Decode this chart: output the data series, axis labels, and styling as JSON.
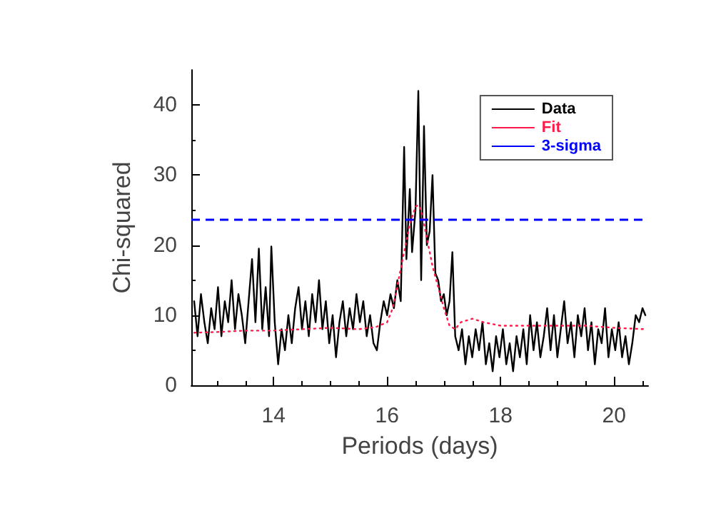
{
  "chart_data": {
    "type": "line",
    "xlabel": "Periods (days)",
    "ylabel": "Chi-squared",
    "xlim": [
      12.55,
      20.6
    ],
    "xticks": [
      14,
      16,
      18,
      20
    ],
    "ylim": [
      0,
      45
    ],
    "yticks": [
      0,
      10,
      20,
      30,
      40
    ],
    "grid": false,
    "legend": "top right",
    "marker": "none",
    "series": [
      {
        "name": "Data",
        "color": "#000000",
        "line_style": "solid",
        "x": [
          12.6,
          12.66,
          12.72,
          12.78,
          12.84,
          12.9,
          12.96,
          13.02,
          13.08,
          13.14,
          13.2,
          13.26,
          13.32,
          13.38,
          13.44,
          13.5,
          13.56,
          13.62,
          13.68,
          13.74,
          13.8,
          13.86,
          13.92,
          13.96,
          14.02,
          14.08,
          14.14,
          14.2,
          14.26,
          14.32,
          14.38,
          14.44,
          14.5,
          14.56,
          14.62,
          14.68,
          14.74,
          14.8,
          14.86,
          14.92,
          14.98,
          15.04,
          15.1,
          15.16,
          15.22,
          15.28,
          15.34,
          15.4,
          15.46,
          15.52,
          15.58,
          15.64,
          15.7,
          15.76,
          15.82,
          15.88,
          15.94,
          16.0,
          16.06,
          16.12,
          16.18,
          16.24,
          16.3,
          16.34,
          16.4,
          16.44,
          16.5,
          16.55,
          16.6,
          16.65,
          16.7,
          16.75,
          16.8,
          16.85,
          16.9,
          16.95,
          17.0,
          17.05,
          17.1,
          17.15,
          17.2,
          17.26,
          17.32,
          17.38,
          17.44,
          17.5,
          17.56,
          17.62,
          17.68,
          17.74,
          17.8,
          17.86,
          17.92,
          17.98,
          18.04,
          18.1,
          18.16,
          18.22,
          18.28,
          18.34,
          18.4,
          18.46,
          18.52,
          18.58,
          18.64,
          18.7,
          18.76,
          18.82,
          18.88,
          18.94,
          19.0,
          19.06,
          19.12,
          19.18,
          19.24,
          19.3,
          19.36,
          19.42,
          19.48,
          19.54,
          19.6,
          19.66,
          19.72,
          19.78,
          19.84,
          19.9,
          19.96,
          20.02,
          20.08,
          20.14,
          20.2,
          20.26,
          20.32,
          20.38,
          20.44,
          20.5,
          20.55
        ],
        "values": [
          12,
          7,
          13,
          9,
          6,
          11,
          8,
          14,
          7,
          12,
          9,
          15,
          8,
          13,
          10,
          6,
          12,
          18,
          9,
          19.5,
          8,
          14,
          7,
          19.8,
          9,
          3,
          8,
          5,
          10,
          6,
          11,
          14,
          8,
          12,
          7,
          13,
          9,
          15,
          8,
          12,
          6,
          10,
          4,
          9,
          12,
          7,
          11,
          8,
          13,
          9,
          12,
          7,
          10,
          6,
          5,
          9,
          12,
          10,
          13,
          11,
          15,
          12,
          34,
          18,
          28,
          19,
          25,
          42,
          15,
          37,
          20,
          22,
          30,
          16,
          15,
          12,
          13,
          10,
          12,
          19,
          7,
          5,
          8,
          3,
          7,
          4,
          8,
          5,
          9,
          3,
          6,
          2,
          7,
          4,
          8,
          3,
          6,
          2,
          7,
          4,
          8,
          3,
          10,
          5,
          9,
          4,
          7,
          11,
          5,
          10,
          4,
          8,
          12,
          6,
          9,
          4,
          10,
          7,
          11,
          5,
          9,
          3,
          8,
          6,
          11,
          4,
          8,
          5,
          9,
          4,
          7,
          3,
          6,
          10,
          9,
          11,
          10
        ]
      },
      {
        "name": "Fit",
        "color": "#ff1a4a",
        "line_style": "dotted",
        "x": [
          12.6,
          13.0,
          13.5,
          14.0,
          14.5,
          15.0,
          15.5,
          15.8,
          16.0,
          16.1,
          16.2,
          16.3,
          16.4,
          16.5,
          16.55,
          16.6,
          16.7,
          16.8,
          16.9,
          17.0,
          17.1,
          17.2,
          17.3,
          17.5,
          17.7,
          18.0,
          18.5,
          19.0,
          19.5,
          20.0,
          20.55
        ],
        "values": [
          7.5,
          7.6,
          7.8,
          7.8,
          8.0,
          8.2,
          8.0,
          8.3,
          9,
          11,
          15,
          19,
          23,
          25.5,
          25.7,
          25,
          21,
          17,
          14,
          11,
          8.5,
          8.0,
          9.0,
          9.5,
          9.0,
          8.5,
          8.5,
          8.5,
          8.5,
          8.2,
          8.0
        ]
      }
    ],
    "ref_lines": [
      {
        "axis": "y",
        "value": 23.7,
        "label": "3-sigma",
        "color": "#0000ff",
        "line_style": "dashed"
      }
    ]
  }
}
